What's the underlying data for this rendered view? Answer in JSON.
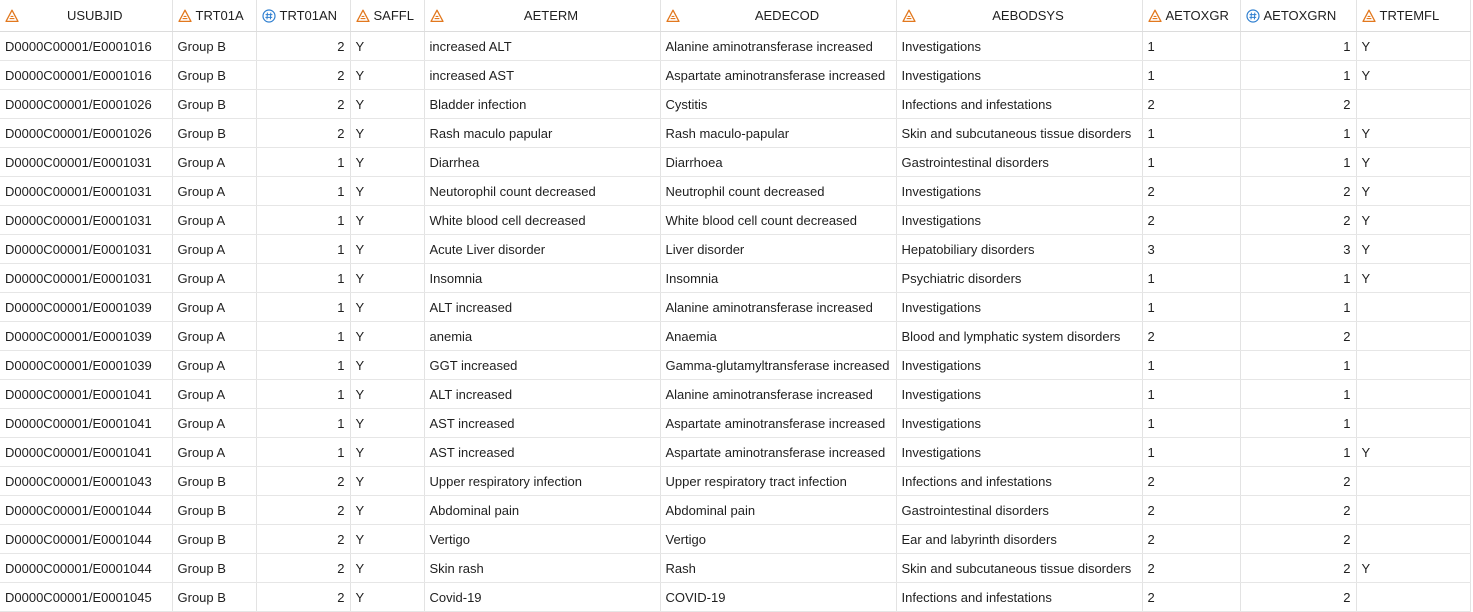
{
  "columns": [
    {
      "name": "USUBJID",
      "type": "char"
    },
    {
      "name": "TRT01A",
      "type": "char"
    },
    {
      "name": "TRT01AN",
      "type": "num"
    },
    {
      "name": "SAFFL",
      "type": "char"
    },
    {
      "name": "AETERM",
      "type": "char"
    },
    {
      "name": "AEDECOD",
      "type": "char"
    },
    {
      "name": "AEBODSYS",
      "type": "char"
    },
    {
      "name": "AETOXGR",
      "type": "char"
    },
    {
      "name": "AETOXGRN",
      "type": "num"
    },
    {
      "name": "TRTEMFL",
      "type": "char"
    }
  ],
  "rows": [
    [
      "D0000C00001/E0001016",
      "Group B",
      "2",
      "Y",
      "increased ALT",
      "Alanine aminotransferase increased",
      "Investigations",
      "1",
      "1",
      "Y"
    ],
    [
      "D0000C00001/E0001016",
      "Group B",
      "2",
      "Y",
      "increased AST",
      "Aspartate aminotransferase increased",
      "Investigations",
      "1",
      "1",
      "Y"
    ],
    [
      "D0000C00001/E0001026",
      "Group B",
      "2",
      "Y",
      "Bladder infection",
      "Cystitis",
      "Infections and infestations",
      "2",
      "2",
      ""
    ],
    [
      "D0000C00001/E0001026",
      "Group B",
      "2",
      "Y",
      "Rash maculo papular",
      "Rash maculo-papular",
      "Skin and subcutaneous tissue disorders",
      "1",
      "1",
      "Y"
    ],
    [
      "D0000C00001/E0001031",
      "Group A",
      "1",
      "Y",
      "Diarrhea",
      "Diarrhoea",
      "Gastrointestinal disorders",
      "1",
      "1",
      "Y"
    ],
    [
      "D0000C00001/E0001031",
      "Group A",
      "1",
      "Y",
      "Neutorophil count decreased",
      "Neutrophil count decreased",
      "Investigations",
      "2",
      "2",
      "Y"
    ],
    [
      "D0000C00001/E0001031",
      "Group A",
      "1",
      "Y",
      "White blood cell decreased",
      "White blood cell count decreased",
      "Investigations",
      "2",
      "2",
      "Y"
    ],
    [
      "D0000C00001/E0001031",
      "Group A",
      "1",
      "Y",
      "Acute Liver disorder",
      "Liver disorder",
      "Hepatobiliary disorders",
      "3",
      "3",
      "Y"
    ],
    [
      "D0000C00001/E0001031",
      "Group A",
      "1",
      "Y",
      "Insomnia",
      "Insomnia",
      "Psychiatric disorders",
      "1",
      "1",
      "Y"
    ],
    [
      "D0000C00001/E0001039",
      "Group A",
      "1",
      "Y",
      "ALT increased",
      "Alanine aminotransferase increased",
      "Investigations",
      "1",
      "1",
      ""
    ],
    [
      "D0000C00001/E0001039",
      "Group A",
      "1",
      "Y",
      "anemia",
      "Anaemia",
      "Blood and lymphatic system disorders",
      "2",
      "2",
      ""
    ],
    [
      "D0000C00001/E0001039",
      "Group A",
      "1",
      "Y",
      "GGT increased",
      "Gamma-glutamyltransferase increased",
      "Investigations",
      "1",
      "1",
      ""
    ],
    [
      "D0000C00001/E0001041",
      "Group A",
      "1",
      "Y",
      "ALT increased",
      "Alanine aminotransferase increased",
      "Investigations",
      "1",
      "1",
      ""
    ],
    [
      "D0000C00001/E0001041",
      "Group A",
      "1",
      "Y",
      "AST increased",
      "Aspartate aminotransferase increased",
      "Investigations",
      "1",
      "1",
      ""
    ],
    [
      "D0000C00001/E0001041",
      "Group A",
      "1",
      "Y",
      "AST increased",
      "Aspartate aminotransferase increased",
      "Investigations",
      "1",
      "1",
      "Y"
    ],
    [
      "D0000C00001/E0001043",
      "Group B",
      "2",
      "Y",
      "Upper respiratory infection",
      "Upper respiratory tract infection",
      "Infections and infestations",
      "2",
      "2",
      ""
    ],
    [
      "D0000C00001/E0001044",
      "Group B",
      "2",
      "Y",
      "Abdominal pain",
      "Abdominal pain",
      "Gastrointestinal disorders",
      "2",
      "2",
      ""
    ],
    [
      "D0000C00001/E0001044",
      "Group B",
      "2",
      "Y",
      "Vertigo",
      "Vertigo",
      "Ear and labyrinth disorders",
      "2",
      "2",
      ""
    ],
    [
      "D0000C00001/E0001044",
      "Group B",
      "2",
      "Y",
      "Skin rash",
      "Rash",
      "Skin and subcutaneous tissue disorders",
      "2",
      "2",
      "Y"
    ],
    [
      "D0000C00001/E0001045",
      "Group B",
      "2",
      "Y",
      "Covid-19",
      "COVID-19",
      "Infections and infestations",
      "2",
      "2",
      ""
    ]
  ],
  "icons": {
    "char": "character-column-icon",
    "num": "numeric-column-icon"
  },
  "colors": {
    "char_icon": "#e2781e",
    "num_icon": "#2f7fd0"
  }
}
